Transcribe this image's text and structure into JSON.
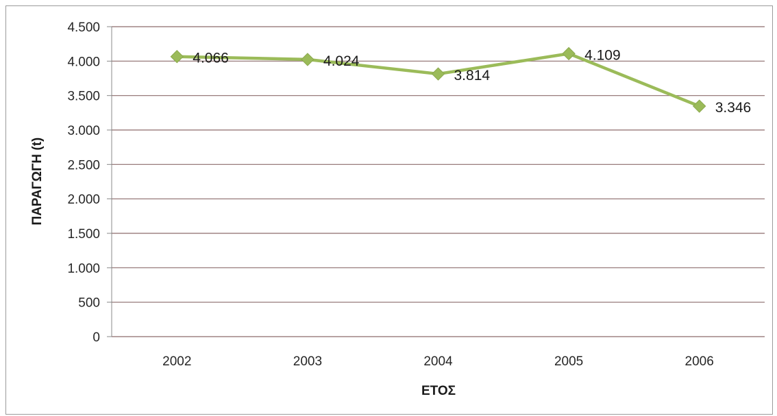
{
  "chart_data": {
    "type": "line",
    "title": "",
    "xlabel": "ΕΤΟΣ",
    "ylabel": "ΠΑΡΑΓΩΓΗ (t)",
    "categories": [
      "2002",
      "2003",
      "2004",
      "2005",
      "2006"
    ],
    "series": [
      {
        "values": [
          4066,
          4024,
          3814,
          4109,
          3346
        ],
        "labels": [
          "4.066",
          "4.024",
          "3.814",
          "4.109",
          "3.346"
        ],
        "color": "#9bbb59",
        "marker": "diamond"
      }
    ],
    "ylim": [
      0,
      4500
    ],
    "yticks": [
      0,
      500,
      1000,
      1500,
      2000,
      2500,
      3000,
      3500,
      4000,
      4500
    ],
    "ytick_labels": [
      "0",
      "500",
      "1.000",
      "1.500",
      "2.000",
      "2.500",
      "3.000",
      "3.500",
      "4.000",
      "4.500"
    ],
    "grid": true,
    "gridline_color": "#8c6b6b",
    "legend": "none"
  }
}
